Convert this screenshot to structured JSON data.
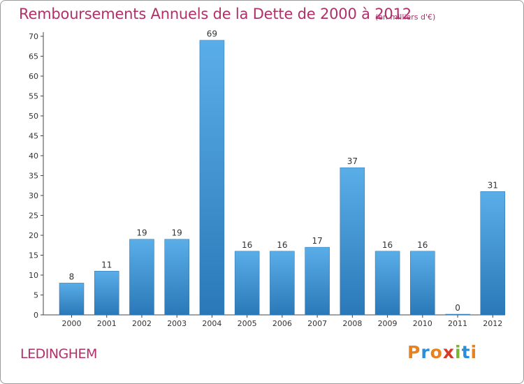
{
  "header": {
    "title": "Remboursements Annuels de la Dette de 2000 à 2012",
    "subtitle": "(en milliers d'€)"
  },
  "footer": {
    "commune": "LEDINGHEM",
    "logo": {
      "letters": [
        "P",
        "r",
        "o",
        "x",
        "i",
        "t",
        "i"
      ],
      "colors": [
        "#e8821e",
        "#2b8fd6",
        "#e8821e",
        "#d83a2a",
        "#7ab530",
        "#2b8fd6",
        "#e8821e"
      ]
    }
  },
  "chart_data": {
    "type": "bar",
    "categories": [
      "2000",
      "2001",
      "2002",
      "2003",
      "2004",
      "2005",
      "2006",
      "2007",
      "2008",
      "2009",
      "2010",
      "2011",
      "2012"
    ],
    "values": [
      8,
      11,
      19,
      19,
      69,
      16,
      16,
      17,
      37,
      16,
      16,
      0,
      31
    ],
    "ylim": [
      0,
      70
    ],
    "yticks": [
      0,
      5,
      10,
      15,
      20,
      25,
      30,
      35,
      40,
      45,
      50,
      55,
      60,
      65,
      70
    ],
    "grid": false,
    "bar_color_top": "#5aaee8",
    "bar_color_bottom": "#2a78b8"
  }
}
